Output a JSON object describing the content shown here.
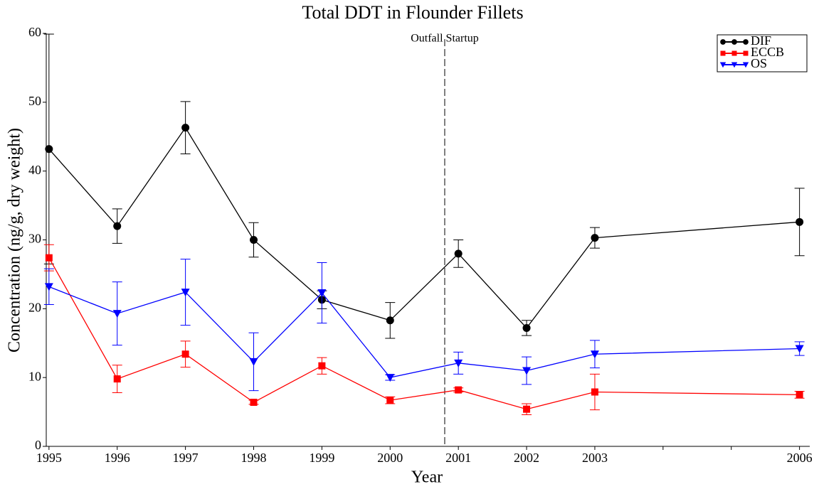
{
  "chart_data": {
    "type": "line",
    "title": "Total DDT in Flounder Fillets",
    "xlabel": "Year",
    "ylabel": "Concentration (ng/g, dry weight)",
    "x": [
      1995,
      1996,
      1997,
      1998,
      1999,
      2000,
      2001,
      2002,
      2003,
      2006
    ],
    "series": [
      {
        "name": "DIF",
        "color": "#000000",
        "marker": "circle",
        "values": [
          43.2,
          32.0,
          46.3,
          30.0,
          21.3,
          18.3,
          28.0,
          17.2,
          30.3,
          32.6
        ],
        "errors": [
          16.7,
          2.5,
          3.8,
          2.5,
          1.3,
          2.6,
          2.0,
          1.1,
          1.5,
          4.9
        ]
      },
      {
        "name": "ECCB",
        "color": "#ff0000",
        "marker": "square",
        "values": [
          27.4,
          9.8,
          13.4,
          6.4,
          11.7,
          6.7,
          8.2,
          5.4,
          7.9,
          7.5
        ],
        "errors": [
          1.9,
          2.0,
          1.9,
          0.3,
          1.2,
          0.5,
          0.3,
          0.8,
          2.6,
          0.5
        ]
      },
      {
        "name": "OS",
        "color": "#0000ff",
        "marker": "triangle-down",
        "values": [
          23.2,
          19.3,
          22.4,
          12.3,
          22.3,
          10.0,
          12.1,
          11.0,
          13.4,
          14.2
        ],
        "errors": [
          2.6,
          4.6,
          4.8,
          4.2,
          4.4,
          0.4,
          1.6,
          2.0,
          2.0,
          1.0
        ]
      }
    ],
    "xlim": [
      1994.96,
      2006.15
    ],
    "xticks": [
      1995,
      1996,
      1997,
      1998,
      1999,
      2000,
      2001,
      2002,
      2003,
      2006
    ],
    "xminorticks": [
      2004,
      2005
    ],
    "ylim": [
      0,
      60
    ],
    "yticks": [
      0,
      10,
      20,
      30,
      40,
      50,
      60
    ],
    "annotations": [
      {
        "text": "Outfall Startup",
        "x": 2000.8
      }
    ],
    "legend": "upper right",
    "grid": false
  }
}
